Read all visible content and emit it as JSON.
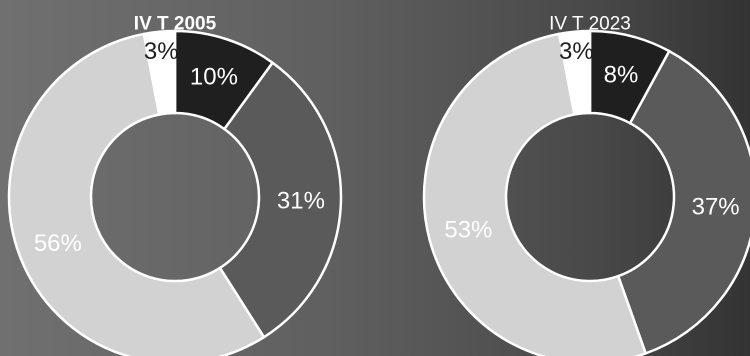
{
  "chart_data": [
    {
      "type": "pie",
      "title": "IV T 2005",
      "title_bold": true,
      "slices": [
        {
          "label": "10%",
          "value": 10,
          "color": "#1f1f1f",
          "label_color": "#ffffff"
        },
        {
          "label": "31%",
          "value": 31,
          "color": "#5a5a5a",
          "label_color": "#ffffff"
        },
        {
          "label": "56%",
          "value": 56,
          "color": "#d2d2d2",
          "label_color": "#ffffff"
        },
        {
          "label": "3%",
          "value": 3,
          "color": "#ffffff",
          "label_color": "#1f1f1f"
        }
      ]
    },
    {
      "type": "pie",
      "title": "IV T 2023",
      "title_bold": false,
      "slices": [
        {
          "label": "8%",
          "value": 8,
          "color": "#1f1f1f",
          "label_color": "#ffffff"
        },
        {
          "label": "37%",
          "value": 37,
          "color": "#5a5a5a",
          "label_color": "#ffffff"
        },
        {
          "label": "53%",
          "value": 53,
          "color": "#d2d2d2",
          "label_color": "#ffffff"
        },
        {
          "label": "3%",
          "value": 3,
          "color": "#ffffff",
          "label_color": "#1f1f1f"
        }
      ]
    }
  ]
}
